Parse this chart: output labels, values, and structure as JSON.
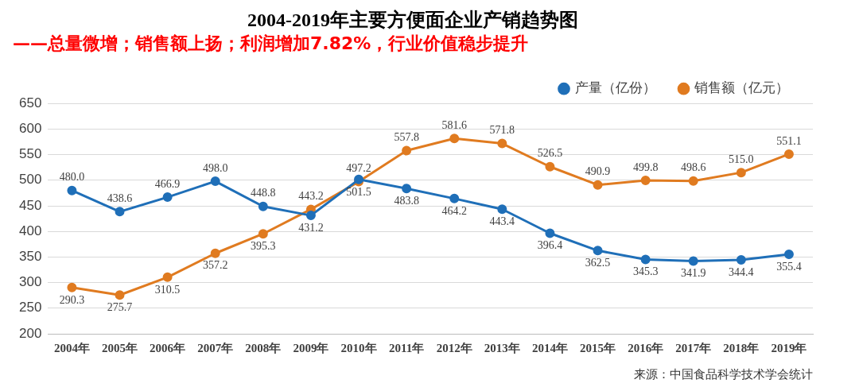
{
  "chart_data": {
    "type": "line",
    "title": "2004-2019年主要方便面企业产销趋势图",
    "subtitle": "——总量微增；销售额上扬；利润增加7.82%，行业价值稳步提升",
    "categories": [
      "2004年",
      "2005年",
      "2006年",
      "2007年",
      "2008年",
      "2009年",
      "2010年",
      "2011年",
      "2012年",
      "2013年",
      "2014年",
      "2015年",
      "2016年",
      "2017年",
      "2018年",
      "2019年"
    ],
    "series": [
      {
        "name": "产量（亿份）",
        "color": "#1f6fb8",
        "values": [
          480.0,
          438.6,
          466.9,
          498.0,
          448.8,
          431.2,
          501.5,
          483.8,
          464.2,
          443.4,
          396.4,
          362.5,
          345.3,
          341.9,
          344.4,
          355.4
        ],
        "value_labels": [
          "480.0",
          "438.6",
          "466.9",
          "498.0",
          "448.8",
          "431.2",
          "501.5",
          "483.8",
          "464.2",
          "443.4",
          "396.4",
          "362.5",
          "345.3",
          "341.9",
          "344.4",
          "355.4"
        ]
      },
      {
        "name": "销售额（亿元）",
        "color": "#e07b20",
        "values": [
          290.3,
          275.7,
          310.5,
          357.2,
          395.3,
          443.2,
          497.2,
          557.8,
          581.6,
          571.8,
          526.5,
          490.9,
          499.8,
          498.6,
          515.0,
          551.1
        ],
        "value_labels": [
          "290.3",
          "275.7",
          "310.5",
          "357.2",
          "395.3",
          "443.2",
          "497.2",
          "557.8",
          "581.6",
          "571.8",
          "526.5",
          "490.9",
          "499.8",
          "498.6",
          "515.0",
          "551.1"
        ]
      }
    ],
    "ylim": [
      200,
      650
    ],
    "yticks": [
      200,
      250,
      300,
      350,
      400,
      450,
      500,
      550,
      600,
      650
    ],
    "grid": "y",
    "legend": "top right",
    "marker": "circle",
    "line_style": "solid",
    "annotations": [
      "来源：中国食品科学技术学会统计"
    ]
  }
}
